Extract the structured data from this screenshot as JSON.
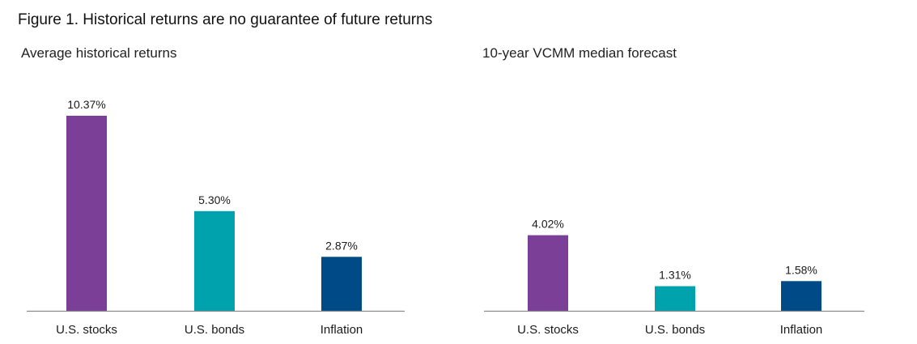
{
  "figure_title": "Figure 1. Historical returns are no guarantee of future returns",
  "chart_data": [
    {
      "type": "bar",
      "title": "Average historical returns",
      "categories": [
        "U.S. stocks",
        "U.S. bonds",
        "Inflation"
      ],
      "values": [
        10.37,
        5.3,
        2.87
      ],
      "value_labels": [
        "10.37%",
        "5.30%",
        "2.87%"
      ],
      "colors": [
        "#7b3f98",
        "#00a3ad",
        "#004b87"
      ],
      "xlabel": "",
      "ylabel": "",
      "ylim": [
        0,
        10.37
      ],
      "grid": false,
      "legend": "none"
    },
    {
      "type": "bar",
      "title": "10-year VCMM median forecast",
      "categories": [
        "U.S. stocks",
        "U.S. bonds",
        "Inflation"
      ],
      "values": [
        4.02,
        1.31,
        1.58
      ],
      "value_labels": [
        "4.02%",
        "1.31%",
        "1.58%"
      ],
      "colors": [
        "#7b3f98",
        "#00a3ad",
        "#004b87"
      ],
      "xlabel": "",
      "ylabel": "",
      "ylim": [
        0,
        10.37
      ],
      "grid": false,
      "legend": "none"
    }
  ]
}
